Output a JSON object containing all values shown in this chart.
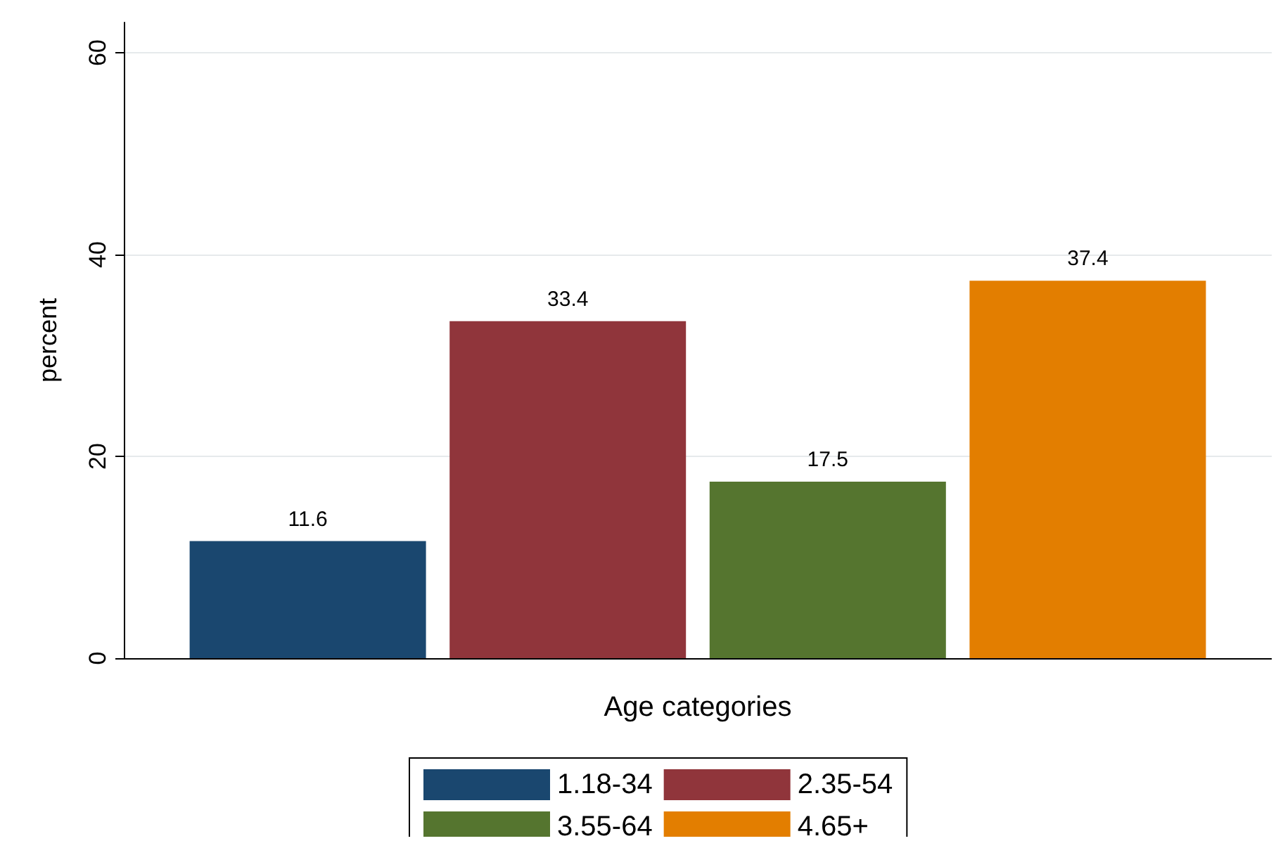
{
  "chart_data": {
    "type": "bar",
    "xlabel": "Age categories",
    "ylabel": "percent",
    "categories": [
      null
    ],
    "series": [
      {
        "name": "1.18-34",
        "color": "#1a476f",
        "values": [
          11.6
        ]
      },
      {
        "name": "2.35-54",
        "color": "#90353b",
        "values": [
          33.4
        ]
      },
      {
        "name": "3.55-64",
        "color": "#55752f",
        "values": [
          17.5
        ]
      },
      {
        "name": "4.65+",
        "color": "#e37e00",
        "values": [
          37.4
        ]
      }
    ],
    "ylim": [
      0,
      63
    ],
    "yticks": [
      0,
      20,
      40,
      60
    ],
    "grid": "y",
    "legend": "bottom",
    "data_labels": true
  }
}
